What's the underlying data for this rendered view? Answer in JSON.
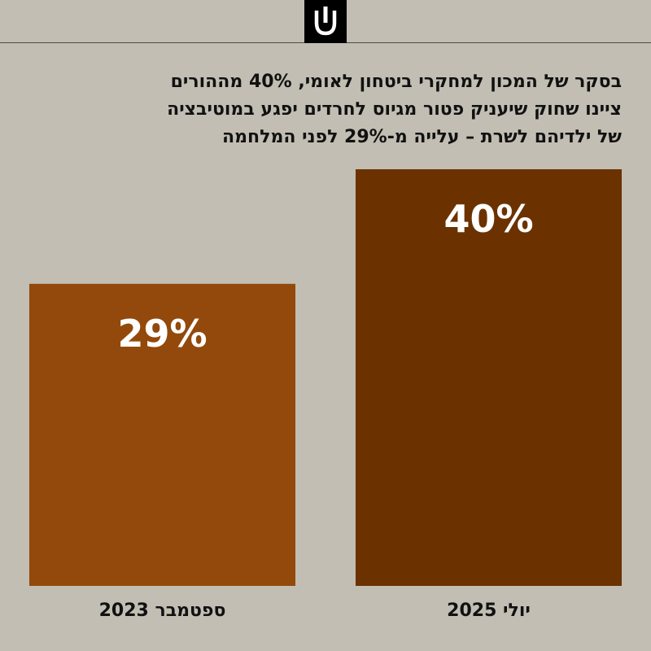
{
  "header": {
    "logo_icon": "ynet-logo-icon"
  },
  "chart_data": {
    "type": "bar",
    "title_lines": [
      "בסקר של המכון למחקרי ביטחון לאומי, 40% מההורים",
      "ציינו שחוק שיעניק פטור מגיוס לחרדים יפגע במוטיבציה",
      "של ילדיהם לשרת – עלייה מ-29% לפני המלחמה"
    ],
    "categories": [
      "ספטמבר 2023",
      "יולי 2025"
    ],
    "values": [
      29,
      40
    ],
    "value_labels": [
      "29%",
      "40%"
    ],
    "colors": [
      "#93490b",
      "#6b3200"
    ],
    "ylim": [
      0,
      40
    ],
    "grid": false,
    "legend": "none"
  }
}
